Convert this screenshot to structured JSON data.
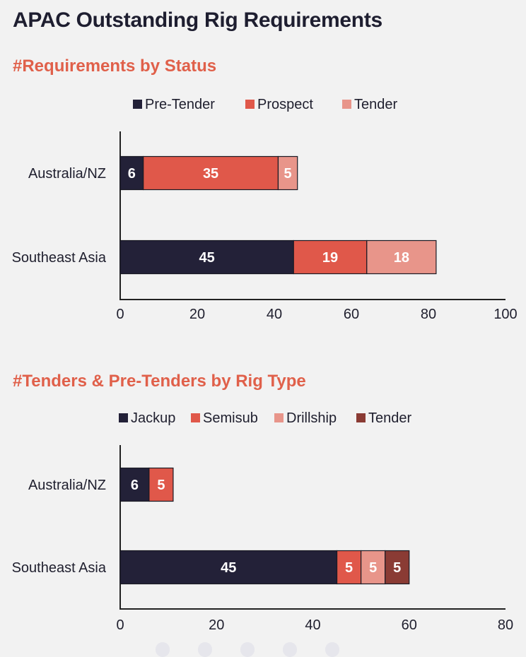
{
  "page": {
    "title": "APAC Outstanding Rig Requirements"
  },
  "chart_data": [
    {
      "id": "chart1",
      "type": "bar",
      "orientation": "horizontal",
      "stacked": true,
      "title": "#Requirements by Status",
      "categories": [
        "Australia/NZ",
        "Southeast Asia"
      ],
      "series": [
        {
          "name": "Pre-Tender",
          "values": [
            6,
            45
          ],
          "color": "#232138"
        },
        {
          "name": "Prospect",
          "values": [
            35,
            19
          ],
          "color": "#e0584a"
        },
        {
          "name": "Tender",
          "values": [
            5,
            18
          ],
          "color": "#e8958a"
        }
      ],
      "xlim": [
        0,
        100
      ],
      "xticks": [
        0,
        20,
        40,
        60,
        80,
        100
      ],
      "grid": false,
      "legend": "top",
      "data_labels": true
    },
    {
      "id": "chart2",
      "type": "bar",
      "orientation": "horizontal",
      "stacked": true,
      "title": "#Tenders & Pre-Tenders by Rig Type",
      "categories": [
        "Australia/NZ",
        "Southeast Asia"
      ],
      "series": [
        {
          "name": "Jackup",
          "values": [
            6,
            45
          ],
          "color": "#232138"
        },
        {
          "name": "Semisub",
          "values": [
            5,
            5
          ],
          "color": "#e0584a"
        },
        {
          "name": "Drillship",
          "values": [
            0,
            5
          ],
          "color": "#e8958a"
        },
        {
          "name": "Tender",
          "values": [
            0,
            5
          ],
          "color": "#8a3b34"
        }
      ],
      "xlim": [
        0,
        80
      ],
      "xticks": [
        0,
        20,
        40,
        60,
        80
      ],
      "grid": false,
      "legend": "top",
      "data_labels": true
    }
  ]
}
